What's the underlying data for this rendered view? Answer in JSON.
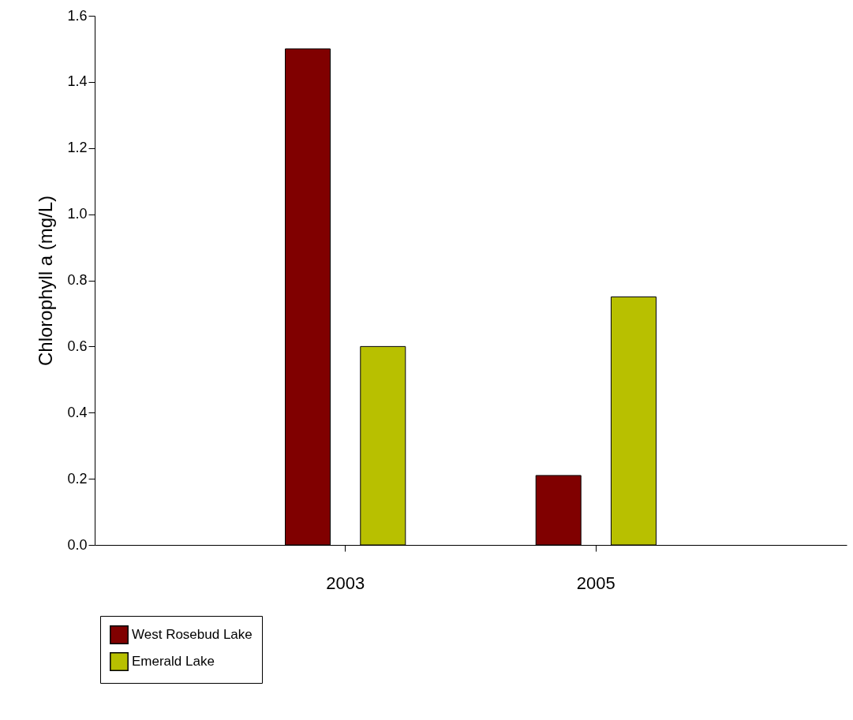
{
  "chart_data": {
    "type": "bar",
    "categories": [
      "2003",
      "2005"
    ],
    "ylabel": "Chlorophyll a (mg/L)",
    "ylim": [
      0,
      1.6
    ],
    "yticks": [
      {
        "value": 0,
        "label": "0.0"
      },
      0.2,
      0.4,
      0.6,
      0.8,
      {
        "value": 1,
        "label": "1.0"
      },
      1.2,
      1.4,
      1.6
    ],
    "series": [
      {
        "name": "West Rosebud Lake",
        "color": "#800000",
        "values": [
          1.5,
          0.21
        ]
      },
      {
        "name": "Emerald Lake",
        "color": "#b8c000",
        "values": [
          0.6,
          0.75
        ]
      }
    ],
    "grid": false,
    "legend": "bottom left"
  }
}
